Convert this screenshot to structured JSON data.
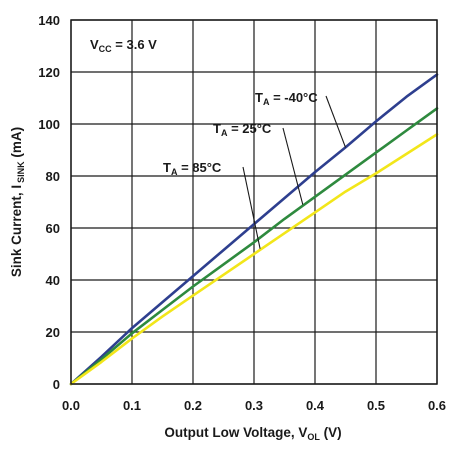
{
  "chart_data": {
    "type": "line",
    "xlabel": {
      "main": "Output Low Voltage, V",
      "sub": "OL",
      "unit": " (V)"
    },
    "ylabel": {
      "main": "Sink Current, I",
      "sub": "SINK",
      "unit": " (mA)"
    },
    "xlim": [
      0,
      0.6
    ],
    "ylim": [
      0,
      140
    ],
    "x_ticks": [
      0.0,
      0.1,
      0.2,
      0.3,
      0.4,
      0.5,
      0.6
    ],
    "x_tick_labels": [
      "0.0",
      "0.1",
      "0.2",
      "0.3",
      "0.4",
      "0.5",
      "0.6"
    ],
    "y_ticks": [
      0,
      20,
      40,
      60,
      80,
      100,
      120,
      140
    ],
    "y_tick_labels": [
      "0",
      "20",
      "40",
      "60",
      "80",
      "100",
      "120",
      "140"
    ],
    "grid": true,
    "annotations": [
      {
        "id": "vcc",
        "main": "V",
        "sub": "CC",
        "rest": " = 3.6 V"
      }
    ],
    "series": [
      {
        "name": "-40°C",
        "label": {
          "main": "T",
          "sub": "A",
          "rest": " = -40°C"
        },
        "color": "#2e3f8f",
        "x": [
          0.0,
          0.05,
          0.1,
          0.15,
          0.2,
          0.25,
          0.3,
          0.35,
          0.4,
          0.45,
          0.5,
          0.55,
          0.6
        ],
        "y": [
          0,
          10.5,
          21.5,
          31.5,
          41.5,
          51.5,
          61.5,
          71.5,
          81.5,
          91,
          101,
          110.5,
          119
        ]
      },
      {
        "name": "25°C",
        "label": {
          "main": "T",
          "sub": "A",
          "rest": " = 25°C"
        },
        "color": "#2e8a3e",
        "x": [
          0.0,
          0.05,
          0.1,
          0.15,
          0.2,
          0.25,
          0.3,
          0.35,
          0.4,
          0.45,
          0.5,
          0.55,
          0.6
        ],
        "y": [
          0,
          9.5,
          19.5,
          28.5,
          37.5,
          46,
          54.5,
          63.5,
          72,
          80.5,
          89,
          97.5,
          106
        ]
      },
      {
        "name": "85°C",
        "label": {
          "main": "T",
          "sub": "A",
          "rest": " = 85°C"
        },
        "color": "#f2e61a",
        "x": [
          0.0,
          0.05,
          0.1,
          0.15,
          0.2,
          0.25,
          0.3,
          0.35,
          0.4,
          0.45,
          0.5,
          0.55,
          0.6
        ],
        "y": [
          0,
          8.5,
          17.5,
          26,
          34,
          42,
          50,
          58,
          66,
          74,
          81,
          88.5,
          96
        ]
      }
    ]
  }
}
